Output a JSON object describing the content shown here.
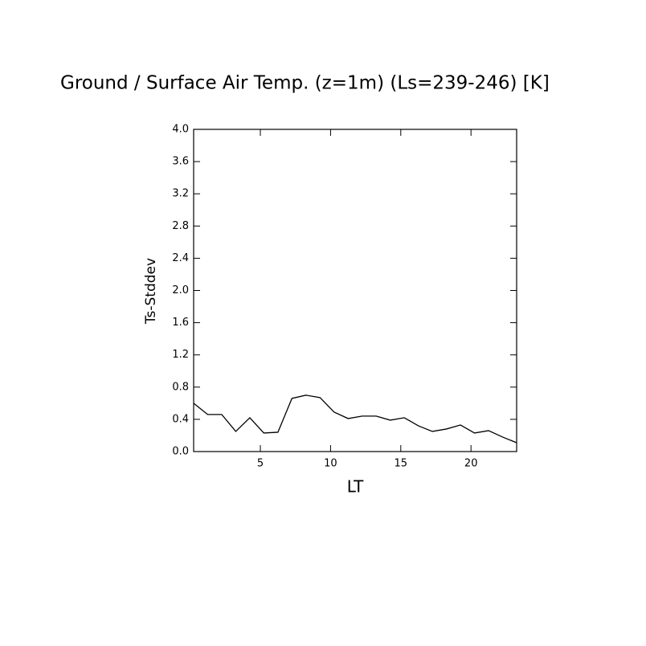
{
  "chart_data": {
    "type": "line",
    "title": "Ground / Surface Air Temp. (z=1m) (Ls=239-246) [K]",
    "x_label": "LT",
    "y_label": "Ts-Stddev",
    "x": [
      0.25,
      1.25,
      2.25,
      3.25,
      4.25,
      5.25,
      6.25,
      7.25,
      8.25,
      9.25,
      10.25,
      11.25,
      12.25,
      13.25,
      14.25,
      15.25,
      16.25,
      17.25,
      18.25,
      19.25,
      20.25,
      21.25,
      22.25,
      23.25
    ],
    "series": [
      {
        "name": "Ts-Stddev",
        "color": "#000000",
        "values": [
          0.6,
          0.46,
          0.46,
          0.25,
          0.42,
          0.23,
          0.24,
          0.66,
          0.7,
          0.67,
          0.49,
          0.41,
          0.44,
          0.44,
          0.39,
          0.42,
          0.32,
          0.25,
          0.28,
          0.33,
          0.23,
          0.26,
          0.18,
          0.11
        ]
      }
    ],
    "xlim": [
      0.25,
      23.25
    ],
    "ylim": [
      0,
      4
    ],
    "xticks": [
      5,
      10,
      15,
      20
    ],
    "yticks": [
      {
        "value": 0,
        "label": "0.0"
      },
      0.4,
      0.8,
      1.2,
      1.6,
      {
        "value": 2,
        "label": "2.0"
      },
      2.4,
      2.8,
      3.2,
      3.6,
      {
        "value": 4,
        "label": "4.0"
      }
    ],
    "grid": false
  }
}
